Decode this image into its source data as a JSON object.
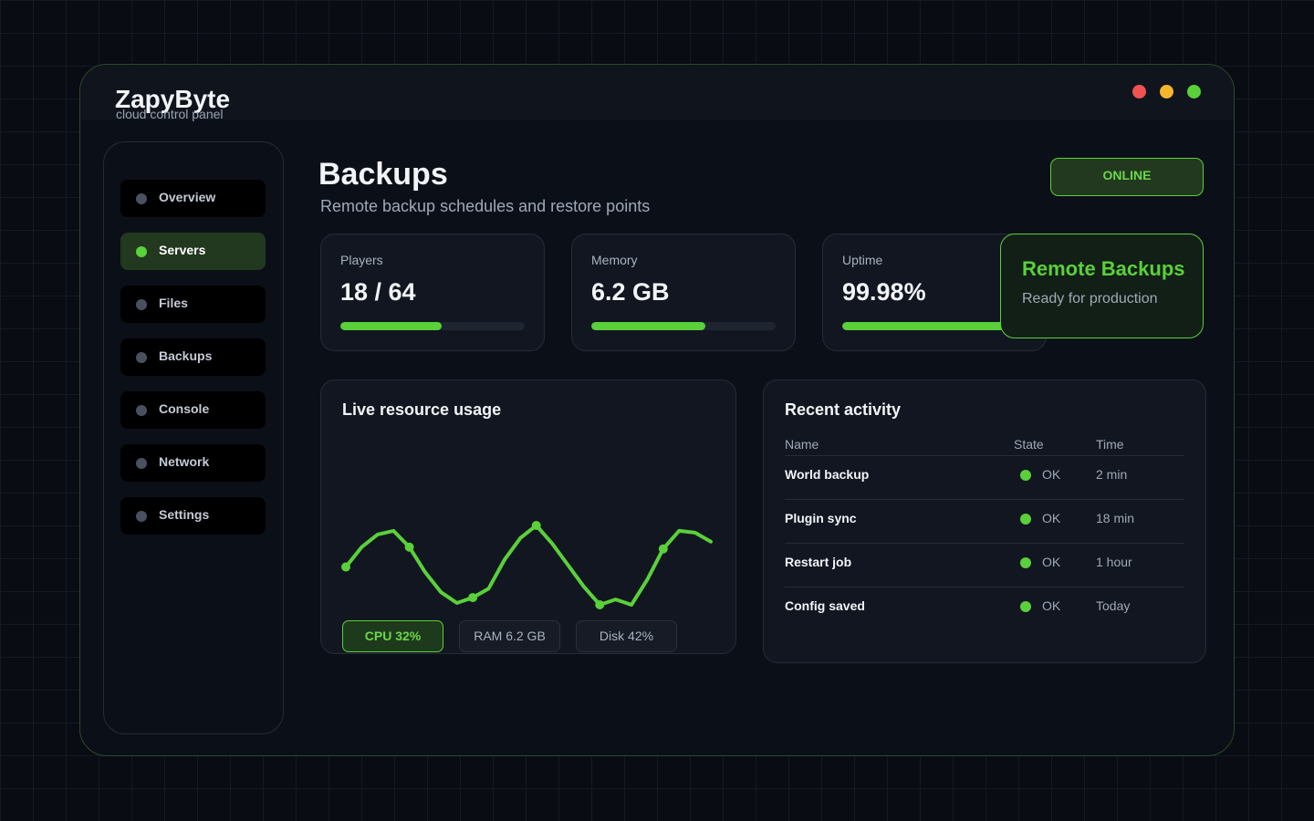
{
  "header": {
    "brand": "ZapyByte",
    "tagline": "cloud control panel"
  },
  "nav": [
    {
      "label": "Overview",
      "active": false
    },
    {
      "label": "Servers",
      "active": true
    },
    {
      "label": "Files",
      "active": false
    },
    {
      "label": "Backups",
      "active": false
    },
    {
      "label": "Console",
      "active": false
    },
    {
      "label": "Network",
      "active": false
    },
    {
      "label": "Settings",
      "active": false
    }
  ],
  "page": {
    "title": "Backups",
    "subtitle": "Remote backup schedules and restore points",
    "status": "ONLINE"
  },
  "stats": [
    {
      "label": "Players",
      "value": "18 / 64",
      "progress": 0.55
    },
    {
      "label": "Memory",
      "value": "6.2 GB",
      "progress": 0.62
    },
    {
      "label": "Uptime",
      "value": "99.98%",
      "progress": 0.88
    }
  ],
  "callout": {
    "title": "Remote Backups",
    "text": "Ready for production"
  },
  "usage": {
    "title": "Live resource usage",
    "values": [
      30,
      41,
      48,
      50,
      41,
      27,
      16,
      10,
      13,
      18,
      34,
      46,
      53,
      43,
      31,
      19,
      9,
      12,
      9,
      23,
      40,
      50,
      49,
      44
    ],
    "markers": [
      0,
      4,
      8,
      12,
      16,
      20
    ],
    "color": "#5ad03a",
    "chips": [
      {
        "label": "CPU 32%",
        "active": true
      },
      {
        "label": "RAM 6.2 GB",
        "active": false
      },
      {
        "label": "Disk 42%",
        "active": false
      }
    ]
  },
  "activity": {
    "title": "Recent activity",
    "columns": [
      "Name",
      "State",
      "Time"
    ],
    "rows": [
      [
        "World backup",
        "OK",
        "2 min"
      ],
      [
        "Plugin sync",
        "OK",
        "18 min"
      ],
      [
        "Restart job",
        "OK",
        "1 hour"
      ],
      [
        "Config saved",
        "OK",
        "Today"
      ]
    ]
  }
}
